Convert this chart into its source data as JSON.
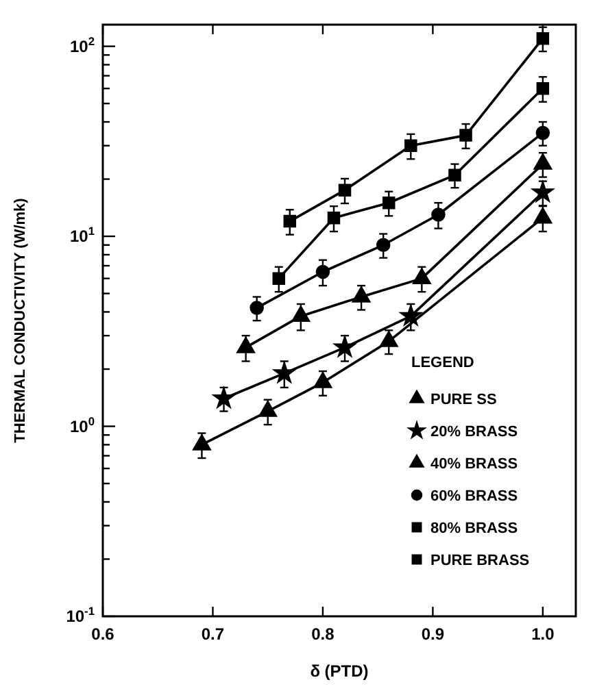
{
  "chart_data": {
    "type": "line",
    "xlabel": "δ (PTD)",
    "ylabel": "THERMAL CONDUCTIVITY (W/mk)",
    "log": "y",
    "xlim": [
      0.6,
      1.03
    ],
    "xticks": [
      {
        "value": 0.6,
        "label": "0.6"
      },
      {
        "value": 0.7,
        "label": "0.7"
      },
      {
        "value": 0.8,
        "label": "0.8"
      },
      {
        "value": 0.9,
        "label": "0.9"
      },
      {
        "value": 1.0,
        "label": "1.0"
      }
    ],
    "ylim": [
      0.1,
      130
    ],
    "yticks": [
      {
        "value": 0.1,
        "label": "10$^{-1}$"
      },
      {
        "value": 0.2,
        "label": null
      },
      {
        "value": 0.3,
        "label": null
      },
      {
        "value": 0.4,
        "label": null
      },
      {
        "value": 0.5,
        "label": null
      },
      {
        "value": 0.6,
        "label": null
      },
      {
        "value": 0.7,
        "label": null
      },
      {
        "value": 0.8,
        "label": null
      },
      {
        "value": 0.9,
        "label": null
      },
      {
        "value": 1,
        "label": "10$^{0}$"
      },
      {
        "value": 2,
        "label": null
      },
      {
        "value": 3,
        "label": null
      },
      {
        "value": 4,
        "label": null
      },
      {
        "value": 5,
        "label": null
      },
      {
        "value": 6,
        "label": null
      },
      {
        "value": 7,
        "label": null
      },
      {
        "value": 8,
        "label": null
      },
      {
        "value": 9,
        "label": null
      },
      {
        "value": 10,
        "label": "10$^{1}$"
      },
      {
        "value": 20,
        "label": null
      },
      {
        "value": 30,
        "label": null
      },
      {
        "value": 40,
        "label": null
      },
      {
        "value": 50,
        "label": null
      },
      {
        "value": 60,
        "label": null
      },
      {
        "value": 70,
        "label": null
      },
      {
        "value": 80,
        "label": null
      },
      {
        "value": 90,
        "label": null
      },
      {
        "value": 100,
        "label": "10$^{2}$"
      }
    ],
    "legend": "bottom right",
    "legend_title": "LEGEND",
    "grid": false,
    "line_style": "solid",
    "series": [
      {
        "name": "PURE SS",
        "color": "#000000",
        "marker": "triangle",
        "x": [
          0.69,
          0.75,
          0.8,
          0.86,
          1.0
        ],
        "values": [
          0.8,
          1.2,
          1.7,
          2.8,
          12.5
        ],
        "errors": [
          0.12,
          0.18,
          0.25,
          0.4,
          1.9
        ]
      },
      {
        "name": "20% BRASS",
        "color": "#000000",
        "marker": "star",
        "x": [
          0.71,
          0.765,
          0.82,
          0.88,
          1.0
        ],
        "values": [
          1.4,
          1.9,
          2.6,
          3.8,
          17
        ],
        "errors": [
          0.2,
          0.3,
          0.4,
          0.6,
          2.5
        ]
      },
      {
        "name": "40% BRASS",
        "color": "#000000",
        "marker": "triangle",
        "x": [
          0.73,
          0.78,
          0.835,
          0.89,
          1.0
        ],
        "values": [
          2.6,
          3.8,
          4.8,
          6,
          24
        ],
        "errors": [
          0.4,
          0.6,
          0.7,
          0.9,
          3.5
        ]
      },
      {
        "name": "60% BRASS",
        "color": "#000000",
        "marker": "circle",
        "x": [
          0.74,
          0.8,
          0.855,
          0.905,
          1.0
        ],
        "values": [
          4.2,
          6.5,
          9,
          13,
          35
        ],
        "errors": [
          0.6,
          1,
          1.3,
          2,
          5
        ]
      },
      {
        "name": "80% BRASS",
        "color": "#000000",
        "marker": "square",
        "x": [
          0.76,
          0.81,
          0.86,
          0.92,
          1.0
        ],
        "values": [
          6,
          12.5,
          15,
          21,
          60
        ],
        "errors": [
          0.9,
          1.9,
          2.2,
          3,
          9
        ]
      },
      {
        "name": "PURE BRASS",
        "color": "#000000",
        "marker": "square",
        "x": [
          0.77,
          0.82,
          0.88,
          0.93,
          1.0
        ],
        "values": [
          12,
          17.5,
          30,
          34,
          110
        ],
        "errors": [
          1.8,
          2.6,
          4.5,
          5,
          16
        ]
      }
    ]
  }
}
